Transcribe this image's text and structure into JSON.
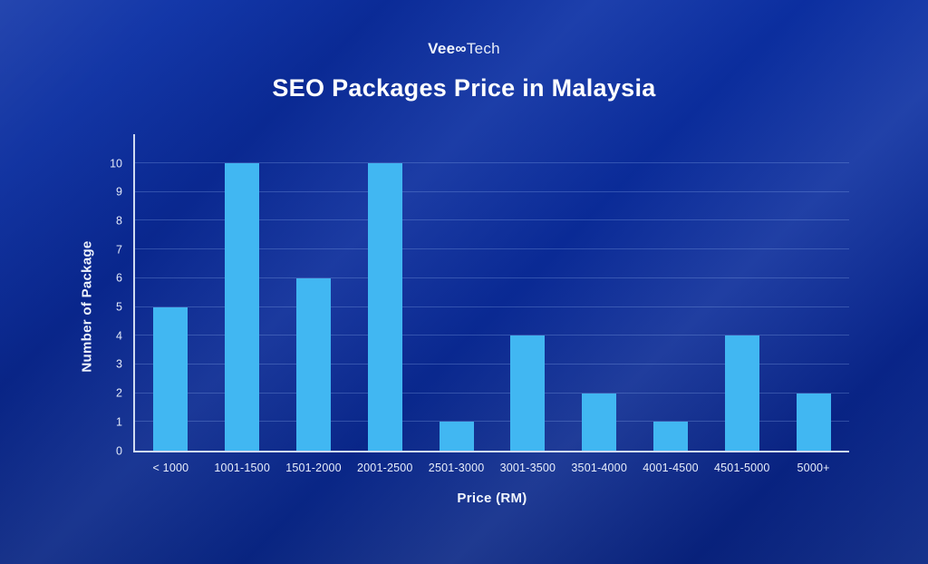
{
  "brand": {
    "bold": "Vee∞",
    "light": "Tech"
  },
  "chart_data": {
    "type": "bar",
    "title": "SEO Packages Price in Malaysia",
    "categories": [
      "< 1000",
      "1001-1500",
      "1501-2000",
      "2001-2500",
      "2501-3000",
      "3001-3500",
      "3501-4000",
      "4001-4500",
      "4501-5000",
      "5000+"
    ],
    "values": [
      5,
      10,
      6,
      10,
      1,
      4,
      2,
      1,
      4,
      2
    ],
    "xlabel": "Price (RM)",
    "ylabel": "Number of Package",
    "ylim": [
      0,
      10
    ],
    "ytick_step": 1,
    "grid": true,
    "legend": "none",
    "bar_color": "#41B7F2",
    "background_color": "#0a2b98",
    "axis_color": "#e0e9f8",
    "text_color": "#eef3fc"
  }
}
